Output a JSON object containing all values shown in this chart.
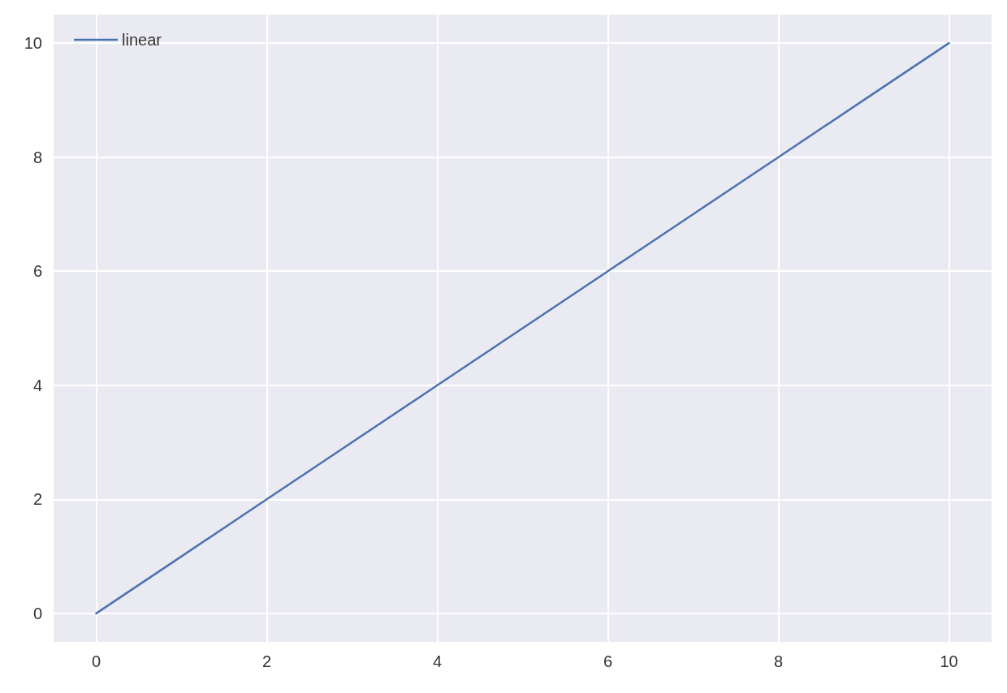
{
  "chart_data": {
    "type": "line",
    "x": [
      0,
      1,
      2,
      3,
      4,
      5,
      6,
      7,
      8,
      9,
      10
    ],
    "series": [
      {
        "name": "linear",
        "color": "#4c72b0",
        "values": [
          0,
          1,
          2,
          3,
          4,
          5,
          6,
          7,
          8,
          9,
          10
        ]
      }
    ],
    "xlim": [
      -0.5,
      10.5
    ],
    "xticks": [
      0,
      2,
      4,
      6,
      8,
      10
    ],
    "ylim": [
      -0.5,
      10.5
    ],
    "yticks": [
      0,
      2,
      4,
      6,
      8,
      10
    ],
    "grid": true,
    "legend": "top left",
    "marker": "none",
    "line_style": "solid"
  }
}
